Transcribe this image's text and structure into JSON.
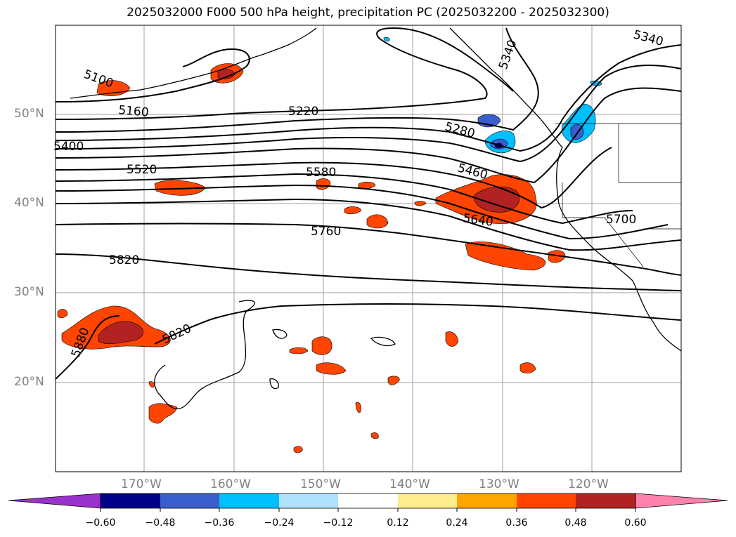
{
  "title": "2025032000 F000 500 hPa height, precipitation PC (2025032200 - 2025032300)",
  "lat_labels": [
    "50°N",
    "40°N",
    "30°N",
    "20°N"
  ],
  "lon_labels": [
    "170°W",
    "160°W",
    "150°W",
    "140°W",
    "130°W",
    "120°W"
  ],
  "contour_labels": [
    "5100",
    "5160",
    "5220",
    "5280",
    "5340",
    "5340",
    "5400",
    "5460",
    "5520",
    "5580",
    "5640",
    "5700",
    "5760",
    "5820",
    "5820",
    "5880"
  ],
  "colorbar": {
    "ticks": [
      "−0.60",
      "−0.48",
      "−0.36",
      "−0.24",
      "−0.12",
      "0.12",
      "0.24",
      "0.36",
      "0.48",
      "0.60"
    ],
    "colors": [
      "#9932cc",
      "#00008b",
      "#3a5fcd",
      "#00bfff",
      "#b0e2ff",
      "#ffffff",
      "#ffec8b",
      "#ffa500",
      "#ff4500",
      "#b22222",
      "#ff82ab"
    ]
  }
}
